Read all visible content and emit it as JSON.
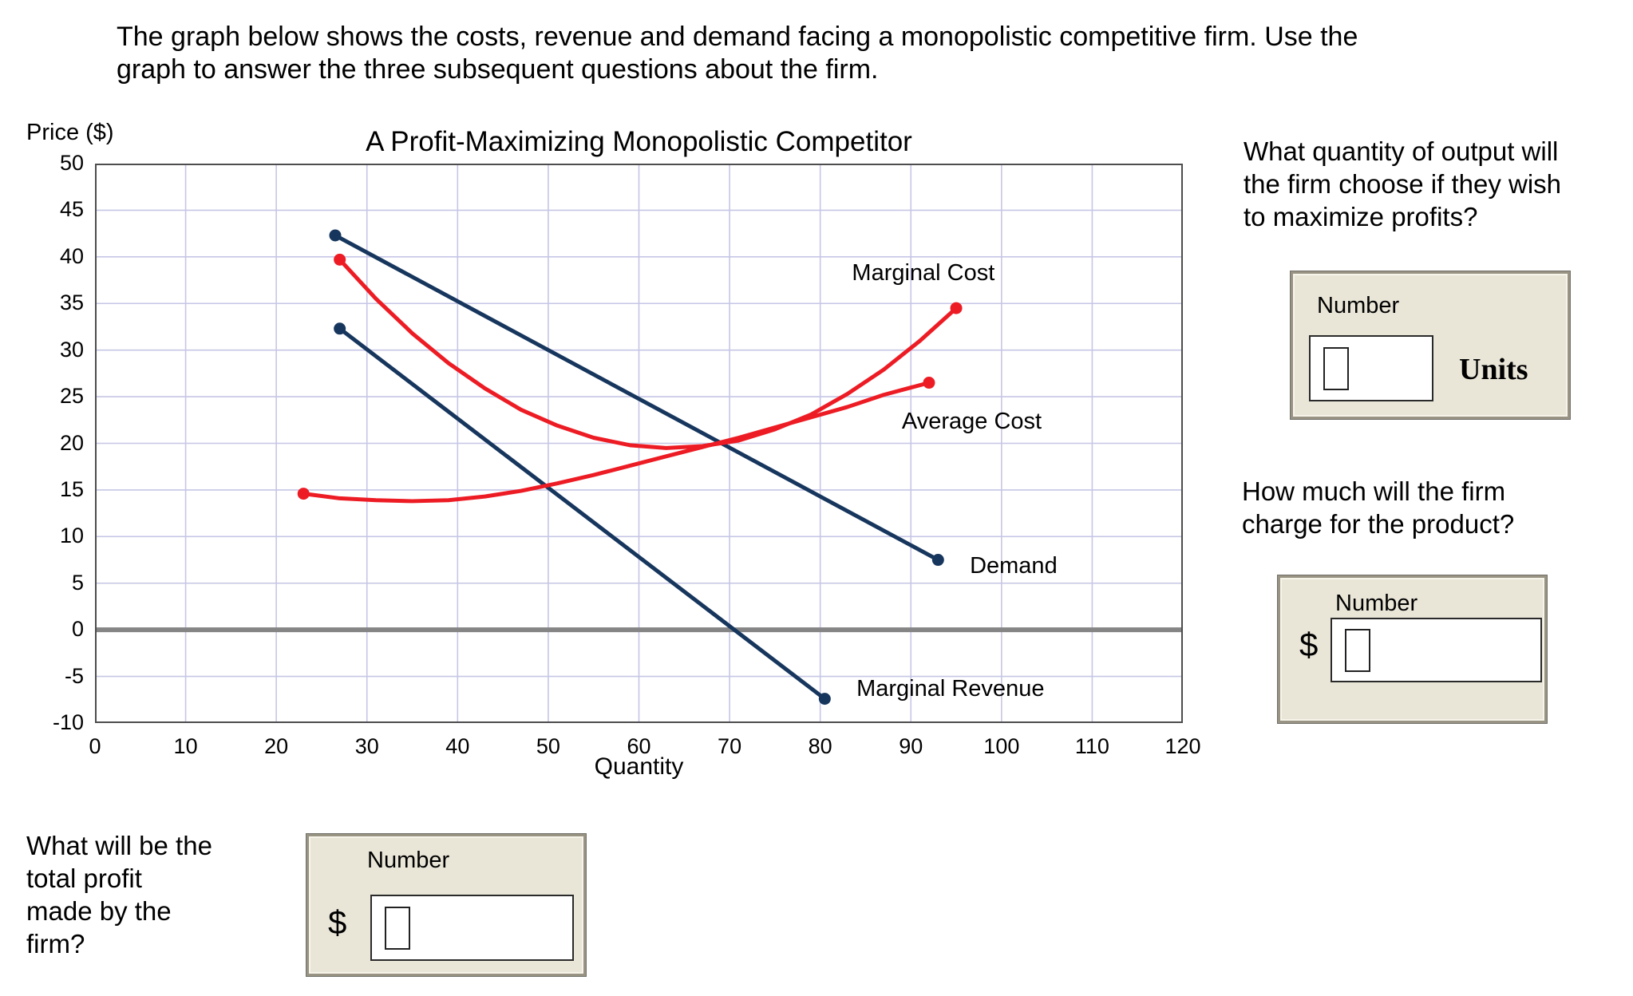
{
  "page": {
    "header": "The graph below shows the costs, revenue and demand facing a monopolistic competitive firm. Use the\ngraph to answer the three subsequent questions about the firm."
  },
  "chart_data": {
    "type": "line",
    "title": "A Profit-Maximizing Monopolistic Competitor",
    "xlabel": "Quantity",
    "ylabel": "Price ($)",
    "xlim": [
      0,
      120
    ],
    "ylim": [
      -10,
      50
    ],
    "xticks": [
      0,
      10,
      20,
      30,
      40,
      50,
      60,
      70,
      80,
      90,
      100,
      110,
      120
    ],
    "yticks": [
      -10,
      -5,
      0,
      5,
      10,
      15,
      20,
      25,
      30,
      35,
      40,
      45,
      50
    ],
    "grid": true,
    "grid_color": "#c6c6e6",
    "zero_line_color": "#858585",
    "axis_color": "#4d4d4d",
    "legend_position": "on-curve-labels",
    "series": [
      {
        "name": "Demand",
        "color": "#17365d",
        "points": [
          [
            26.5,
            42.3
          ],
          [
            93,
            7.5
          ]
        ],
        "label_pos": [
          96.5,
          6.8
        ]
      },
      {
        "name": "Marginal Revenue",
        "color": "#17365d",
        "points": [
          [
            27,
            32.3
          ],
          [
            80.5,
            -7.4
          ]
        ],
        "label_pos": [
          84,
          -6.4
        ]
      },
      {
        "name": "Marginal Cost",
        "color": "#ed1c24",
        "points": [
          [
            27,
            39.7
          ],
          [
            31,
            35.5
          ],
          [
            35,
            31.8
          ],
          [
            39,
            28.6
          ],
          [
            43,
            25.9
          ],
          [
            47,
            23.6
          ],
          [
            51,
            21.9
          ],
          [
            55,
            20.6
          ],
          [
            59,
            19.8
          ],
          [
            63,
            19.5
          ],
          [
            67,
            19.7
          ],
          [
            71,
            20.3
          ],
          [
            75,
            21.5
          ],
          [
            79,
            23.1
          ],
          [
            83,
            25.3
          ],
          [
            87,
            27.9
          ],
          [
            91,
            31.0
          ],
          [
            95,
            34.5
          ]
        ],
        "label_pos": [
          83.5,
          38.2
        ]
      },
      {
        "name": "Average Cost",
        "color": "#ed1c24",
        "points": [
          [
            23,
            14.6
          ],
          [
            27,
            14.1
          ],
          [
            31,
            13.9
          ],
          [
            35,
            13.8
          ],
          [
            39,
            13.9
          ],
          [
            43,
            14.3
          ],
          [
            47,
            14.9
          ],
          [
            51,
            15.7
          ],
          [
            55,
            16.6
          ],
          [
            59,
            17.6
          ],
          [
            63,
            18.6
          ],
          [
            67,
            19.6
          ],
          [
            71,
            20.6
          ],
          [
            75,
            21.7
          ],
          [
            79,
            22.8
          ],
          [
            83,
            23.9
          ],
          [
            87,
            25.2
          ],
          [
            92,
            26.5
          ]
        ],
        "label_pos": [
          89,
          22.3
        ]
      }
    ]
  },
  "questions": {
    "q1": {
      "text": "What quantity of output will\nthe firm choose if they wish\nto maximize profits?",
      "box_label": "Number",
      "suffix": "Units"
    },
    "q2": {
      "text": "How much will the firm\ncharge for the product?",
      "box_label": "Number",
      "prefix": "$"
    },
    "q3": {
      "text": "What will be the\ntotal profit\nmade by the\nfirm?",
      "box_label": "Number",
      "prefix": "$"
    }
  }
}
